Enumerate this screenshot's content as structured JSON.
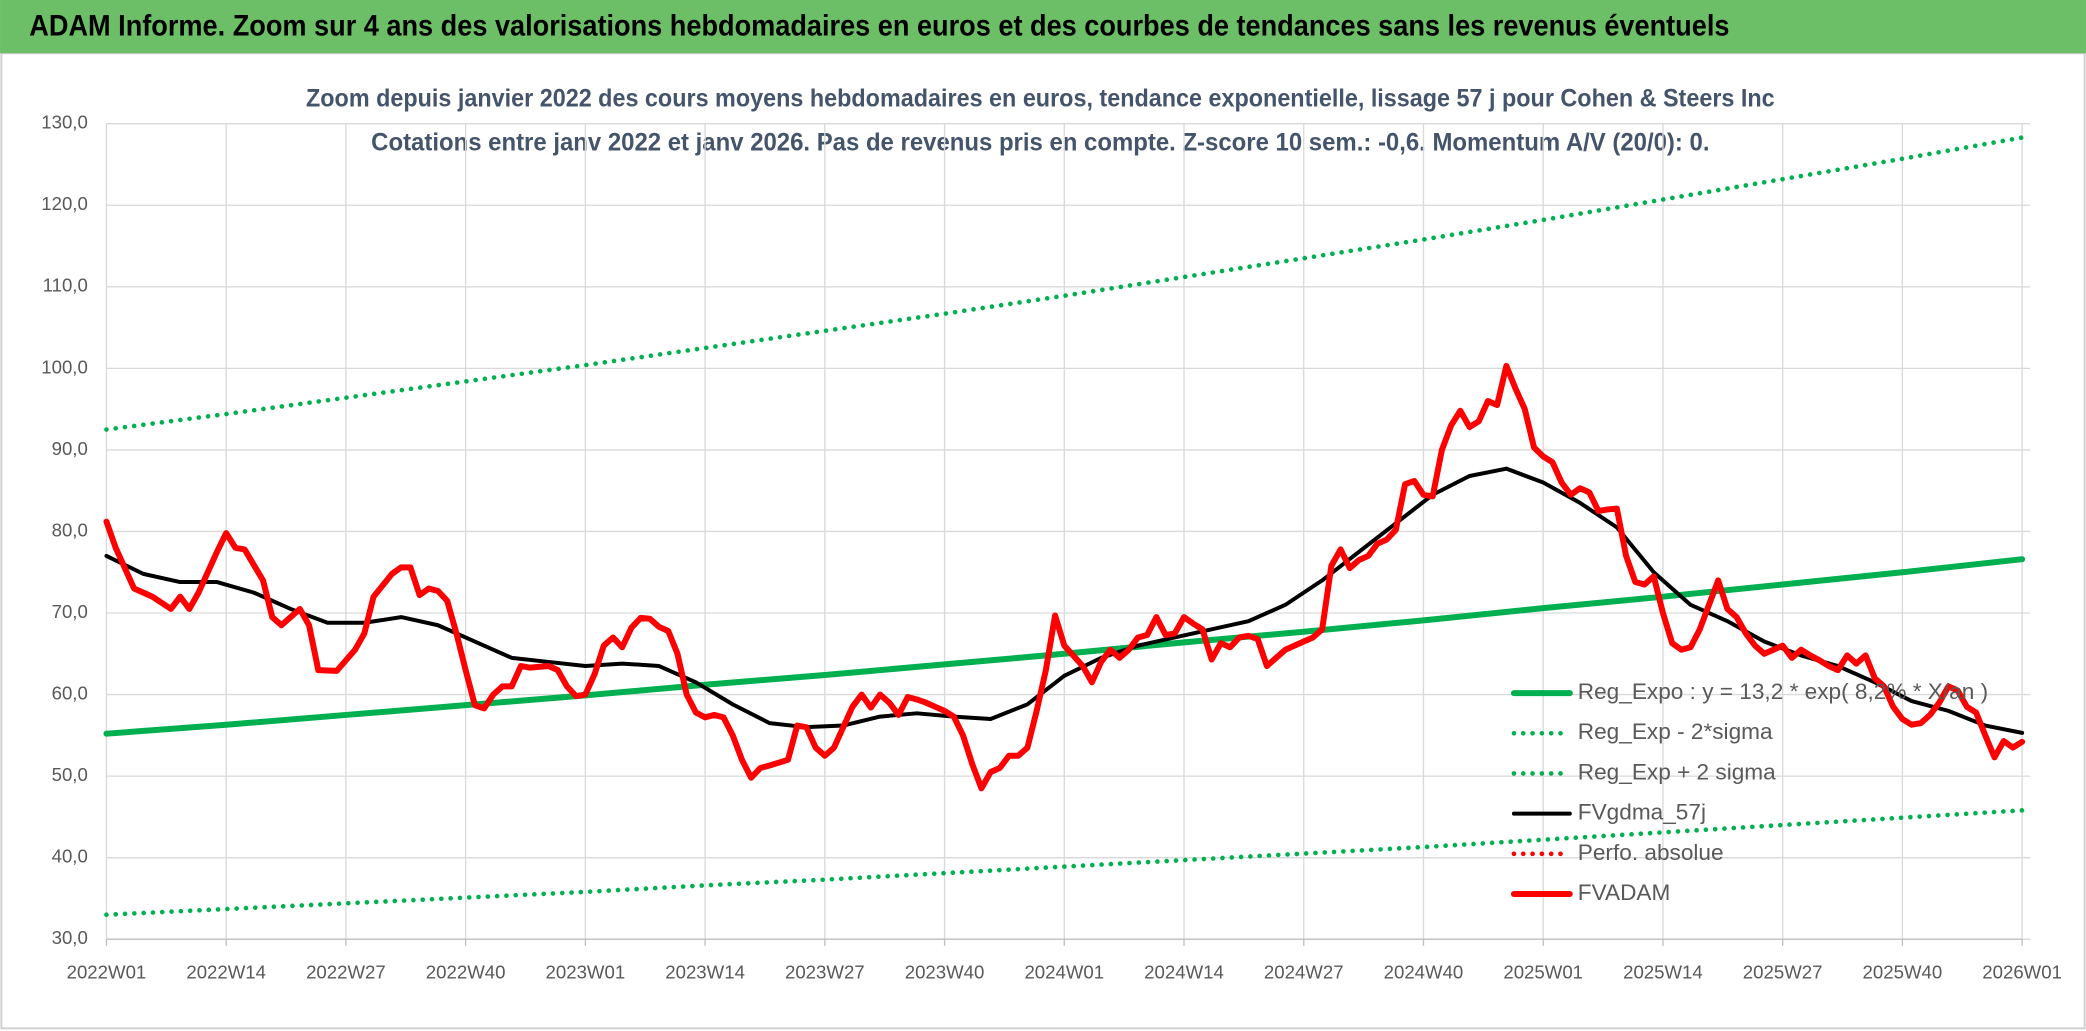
{
  "header": "ADAM Informe. Zoom sur 4 ans des valorisations hebdomadaires en euros et des courbes de tendances sans les revenus éventuels",
  "chart_data": {
    "type": "line",
    "title": "Zoom depuis janvier 2022 des cours moyens hebdomadaires en euros, tendance exponentielle, lissage 57 j pour Cohen & Steers Inc",
    "subtitle": "Cotations entre janv 2022 et janv 2026. Pas de revenus pris en compte. Z-score 10 sem.: -0,6. Momentum A/V (20/0): 0.",
    "xlim": [
      0,
      208
    ],
    "xticks": [
      {
        "value": 0,
        "label": "2022W01"
      },
      {
        "value": 13,
        "label": "2022W14"
      },
      {
        "value": 26,
        "label": "2022W27"
      },
      {
        "value": 39,
        "label": "2022W40"
      },
      {
        "value": 52,
        "label": "2023W01"
      },
      {
        "value": 65,
        "label": "2023W14"
      },
      {
        "value": 78,
        "label": "2023W27"
      },
      {
        "value": 91,
        "label": "2023W40"
      },
      {
        "value": 104,
        "label": "2024W01"
      },
      {
        "value": 117,
        "label": "2024W14"
      },
      {
        "value": 130,
        "label": "2024W27"
      },
      {
        "value": 143,
        "label": "2024W40"
      },
      {
        "value": 156,
        "label": "2025W01"
      },
      {
        "value": 169,
        "label": "2025W14"
      },
      {
        "value": 182,
        "label": "2025W27"
      },
      {
        "value": 195,
        "label": "2025W40"
      },
      {
        "value": 208,
        "label": "2026W01"
      }
    ],
    "ylim": [
      30,
      130
    ],
    "yticks": [
      {
        "value": 30,
        "label": "30,0"
      },
      {
        "value": 40,
        "label": "40,0"
      },
      {
        "value": 50,
        "label": "50,0"
      },
      {
        "value": 60,
        "label": "60,0"
      },
      {
        "value": 70,
        "label": "70,0"
      },
      {
        "value": 80,
        "label": "80,0"
      },
      {
        "value": 90,
        "label": "90,0"
      },
      {
        "value": 100,
        "label": "100,0"
      },
      {
        "value": 110,
        "label": "110,0"
      },
      {
        "value": 120,
        "label": "120,0"
      },
      {
        "value": 130,
        "label": "130,0"
      }
    ],
    "grid": true,
    "legend": "lower right",
    "series": [
      {
        "name": "Reg_Expo : y = 13,2 * exp( 8,2% * X/an )",
        "color": "#00b050",
        "style": "solid",
        "x": [
          0,
          13,
          26,
          39,
          52,
          65,
          78,
          91,
          104,
          117,
          130,
          143,
          156,
          169,
          182,
          195,
          208
        ],
        "values": [
          55.2,
          56.3,
          57.5,
          58.7,
          59.9,
          61.2,
          62.4,
          63.7,
          65.0,
          66.4,
          67.7,
          69.1,
          70.6,
          72.0,
          73.5,
          75.0,
          76.6
        ]
      },
      {
        "name": "Reg_Exp - 2*sigma",
        "color": "#00b050",
        "style": "dotted",
        "x": [
          0,
          13,
          26,
          39,
          52,
          65,
          78,
          91,
          104,
          117,
          130,
          143,
          156,
          169,
          182,
          195,
          208
        ],
        "values": [
          33.0,
          33.7,
          34.4,
          35.1,
          35.8,
          36.6,
          37.3,
          38.1,
          38.9,
          39.7,
          40.5,
          41.3,
          42.2,
          43.1,
          44.0,
          44.9,
          45.8
        ]
      },
      {
        "name": "Reg_Exp + 2 sigma",
        "color": "#00b050",
        "style": "dotted",
        "x": [
          0,
          13,
          26,
          39,
          52,
          65,
          78,
          91,
          104,
          117,
          130,
          143,
          156,
          169,
          182,
          195,
          208
        ],
        "values": [
          92.5,
          94.4,
          96.4,
          98.4,
          100.4,
          102.5,
          104.6,
          106.7,
          108.9,
          111.2,
          113.5,
          115.8,
          118.2,
          120.7,
          123.2,
          125.7,
          128.3
        ]
      },
      {
        "name": "FVgdma_57j",
        "color": "#000000",
        "style": "solid",
        "x": [
          0,
          4,
          8,
          12,
          16,
          20,
          24,
          28,
          32,
          36,
          40,
          44,
          48,
          52,
          56,
          60,
          64,
          68,
          72,
          76,
          80,
          84,
          88,
          92,
          96,
          100,
          104,
          108,
          112,
          116,
          120,
          124,
          128,
          132,
          136,
          140,
          144,
          148,
          152,
          156,
          160,
          164,
          168,
          172,
          176,
          180,
          184,
          188,
          192,
          196,
          200,
          204,
          208
        ],
        "values": [
          77,
          74.8,
          73.8,
          73.8,
          72.5,
          70.5,
          68.8,
          68.8,
          69.5,
          68.5,
          66.5,
          64.5,
          64,
          63.5,
          63.8,
          63.5,
          61.5,
          58.8,
          56.5,
          56,
          56.2,
          57.3,
          57.7,
          57.3,
          57,
          58.8,
          62.3,
          64.5,
          66,
          67,
          68,
          69,
          71,
          74,
          77.5,
          81,
          84.5,
          86.8,
          87.7,
          86,
          83.5,
          80.5,
          75,
          71,
          69,
          66.5,
          64.8,
          63.5,
          61.5,
          59.2,
          58,
          56.2,
          55.3
        ]
      },
      {
        "name": "Perfo. absolue",
        "color": "#ff0000",
        "style": "dotted"
      },
      {
        "name": "FVADAM",
        "color": "#ff0000",
        "style": "solid",
        "x": [
          0,
          1,
          3,
          5,
          7,
          8,
          9,
          10,
          12,
          13,
          14,
          15,
          17,
          18,
          19,
          21,
          22,
          23,
          25,
          27,
          28,
          29,
          31,
          32,
          33,
          34,
          35,
          36,
          37,
          38,
          39,
          40,
          41,
          42,
          43,
          44,
          45,
          46,
          48,
          49,
          50,
          51,
          52,
          53,
          54,
          55,
          56,
          57,
          58,
          59,
          60,
          61,
          62,
          63,
          64,
          65,
          66,
          67,
          68,
          69,
          70,
          71,
          72,
          74,
          75,
          76,
          77,
          78,
          79,
          80,
          81,
          82,
          83,
          84,
          85,
          86,
          87,
          88,
          89,
          90,
          91,
          92,
          93,
          94,
          95,
          96,
          97,
          98,
          99,
          100,
          101,
          102,
          103,
          104,
          106,
          107,
          108,
          109,
          110,
          111,
          112,
          113,
          114,
          115,
          116,
          117,
          118,
          119,
          120,
          121,
          122,
          123,
          124,
          125,
          126,
          127,
          128,
          129,
          130,
          131,
          132,
          133,
          134,
          135,
          136,
          137,
          138,
          139,
          140,
          141,
          142,
          143,
          144,
          145,
          146,
          147,
          148,
          149,
          150,
          151,
          152,
          153,
          154,
          155,
          156,
          157,
          158,
          159,
          160,
          161,
          162,
          163,
          164,
          165,
          166,
          167,
          168,
          169,
          170,
          171,
          172,
          173,
          174,
          175,
          176,
          177,
          178,
          179,
          180,
          181,
          182,
          183,
          184,
          185,
          186,
          187,
          188,
          189,
          190,
          191,
          192,
          193,
          194,
          195,
          196,
          197,
          198,
          199,
          200,
          201,
          202,
          203,
          204,
          205,
          206,
          207,
          208
        ],
        "values": [
          81.2,
          78,
          73,
          72,
          70.5,
          72,
          70.5,
          72.5,
          77.5,
          79.8,
          78,
          77.8,
          74,
          69.5,
          68.5,
          70.5,
          68.5,
          63,
          62.9,
          65.5,
          67.5,
          72,
          74.8,
          75.6,
          75.6,
          72.2,
          73,
          72.7,
          71.5,
          67.5,
          63,
          58.7,
          58.3,
          60,
          61,
          61,
          63.5,
          63.3,
          63.5,
          63,
          61,
          59.8,
          60,
          62.5,
          66,
          67,
          65.8,
          68.2,
          69.4,
          69.3,
          68.3,
          67.8,
          65,
          60,
          57.8,
          57.2,
          57.5,
          57.2,
          55,
          52,
          49.8,
          51,
          51.3,
          52,
          56.2,
          56,
          53.5,
          52.5,
          53.5,
          56,
          58.5,
          60,
          58.4,
          60,
          59,
          57.5,
          59.7,
          59.4,
          59,
          58.5,
          58,
          57.3,
          55,
          51.5,
          48.5,
          50.5,
          51,
          52.5,
          52.5,
          53.5,
          58,
          63,
          69.7,
          66,
          63.5,
          61.5,
          64,
          65.5,
          64.5,
          65.5,
          67,
          67.3,
          69.5,
          67.3,
          67.5,
          69.5,
          68.7,
          68,
          64.3,
          66.3,
          65.8,
          67,
          67.2,
          66.8,
          63.5,
          64.5,
          65.5,
          66,
          66.5,
          67,
          68,
          75.8,
          77.8,
          75.5,
          76.5,
          77,
          78.5,
          79,
          80.2,
          85.8,
          86.2,
          84.5,
          84.3,
          90,
          93,
          94.8,
          92.8,
          93.5,
          96,
          95.5,
          100.3,
          97.5,
          95,
          90.3,
          89.2,
          88.5,
          86,
          84.5,
          85.3,
          84.8,
          82.5,
          82.7,
          82.8,
          77,
          73.8,
          73.5,
          74.5,
          70,
          66.3,
          65.5,
          65.8,
          68,
          71,
          74,
          70.5,
          69.5,
          67.5,
          66,
          65,
          65.5,
          66,
          64.5,
          65.5,
          64.8,
          64.2,
          63.5,
          63,
          64.8,
          63.8,
          64.8,
          62,
          61,
          58.5,
          57,
          56.3,
          56.5,
          57.5,
          59,
          61,
          60.5,
          58.5,
          57.8,
          55,
          52.3,
          54.3,
          53.5,
          54.2
        ]
      }
    ]
  }
}
